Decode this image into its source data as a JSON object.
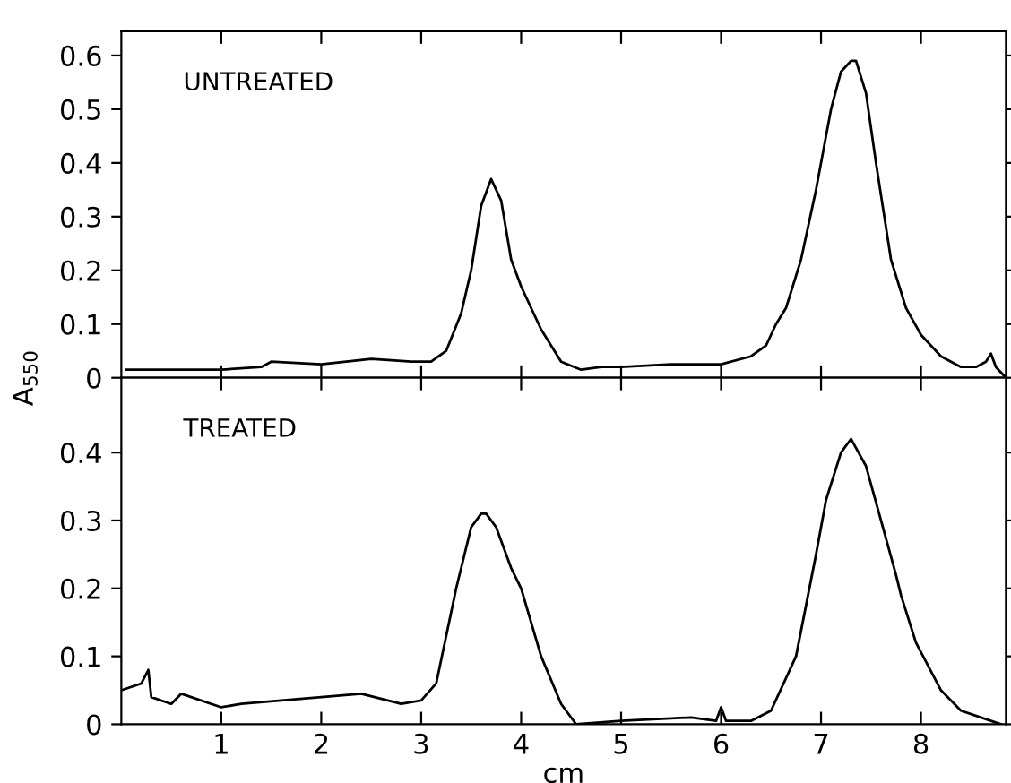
{
  "chart_data": [
    {
      "type": "line",
      "ylabel": "A$_{550}$",
      "annotations": [
        "UNTREATED"
      ],
      "xlim": [
        0,
        8.85
      ],
      "ylim": [
        0,
        0.645
      ],
      "yticks": [
        0,
        0.1,
        0.2,
        0.3,
        0.4,
        0.5,
        0.6
      ],
      "xticks": [
        1,
        2,
        3,
        4,
        5,
        6,
        7,
        8
      ],
      "tick_labels": "y",
      "grid": false,
      "legend": false,
      "series": [
        {
          "color": "#000000",
          "x": [
            0.05,
            0.5,
            1.0,
            1.4,
            1.5,
            2.0,
            2.5,
            2.9,
            3.1,
            3.25,
            3.4,
            3.5,
            3.6,
            3.7,
            3.8,
            3.9,
            4.0,
            4.2,
            4.4,
            4.6,
            4.8,
            5.0,
            5.5,
            6.0,
            6.3,
            6.45,
            6.55,
            6.65,
            6.8,
            6.95,
            7.1,
            7.2,
            7.3,
            7.35,
            7.45,
            7.55,
            7.7,
            7.85,
            8.0,
            8.2,
            8.4,
            8.55,
            8.65,
            8.7,
            8.75,
            8.85
          ],
          "values": [
            0.015,
            0.015,
            0.015,
            0.02,
            0.03,
            0.025,
            0.035,
            0.03,
            0.03,
            0.05,
            0.12,
            0.2,
            0.32,
            0.37,
            0.33,
            0.22,
            0.17,
            0.09,
            0.03,
            0.015,
            0.02,
            0.02,
            0.025,
            0.025,
            0.04,
            0.06,
            0.1,
            0.13,
            0.22,
            0.35,
            0.5,
            0.57,
            0.59,
            0.59,
            0.53,
            0.4,
            0.22,
            0.13,
            0.08,
            0.04,
            0.02,
            0.02,
            0.03,
            0.045,
            0.02,
            0.0
          ]
        }
      ]
    },
    {
      "type": "line",
      "xlabel": "cm",
      "annotations": [
        "TREATED"
      ],
      "xlim": [
        0,
        8.85
      ],
      "ylim": [
        0,
        0.51
      ],
      "yticks": [
        0,
        0.1,
        0.2,
        0.3,
        0.4
      ],
      "xticks": [
        1,
        2,
        3,
        4,
        5,
        6,
        7,
        8
      ],
      "grid": false,
      "legend": false,
      "series": [
        {
          "color": "#000000",
          "x": [
            0.0,
            0.2,
            0.27,
            0.3,
            0.5,
            0.6,
            1.0,
            1.2,
            1.6,
            2.0,
            2.4,
            2.8,
            3.0,
            3.15,
            3.35,
            3.5,
            3.6,
            3.65,
            3.75,
            3.9,
            4.0,
            4.2,
            4.4,
            4.55,
            5.0,
            5.7,
            5.95,
            6.0,
            6.05,
            6.3,
            6.5,
            6.75,
            6.95,
            7.05,
            7.2,
            7.3,
            7.45,
            7.6,
            7.75,
            7.8,
            7.95,
            8.2,
            8.4,
            8.6,
            8.8
          ],
          "values": [
            0.05,
            0.06,
            0.08,
            0.04,
            0.03,
            0.045,
            0.025,
            0.03,
            0.035,
            0.04,
            0.045,
            0.03,
            0.035,
            0.06,
            0.2,
            0.29,
            0.31,
            0.31,
            0.29,
            0.23,
            0.2,
            0.1,
            0.03,
            0.0,
            0.005,
            0.01,
            0.005,
            0.025,
            0.005,
            0.005,
            0.02,
            0.1,
            0.25,
            0.33,
            0.4,
            0.42,
            0.38,
            0.3,
            0.22,
            0.19,
            0.12,
            0.05,
            0.02,
            0.01,
            0.0
          ]
        }
      ]
    }
  ]
}
